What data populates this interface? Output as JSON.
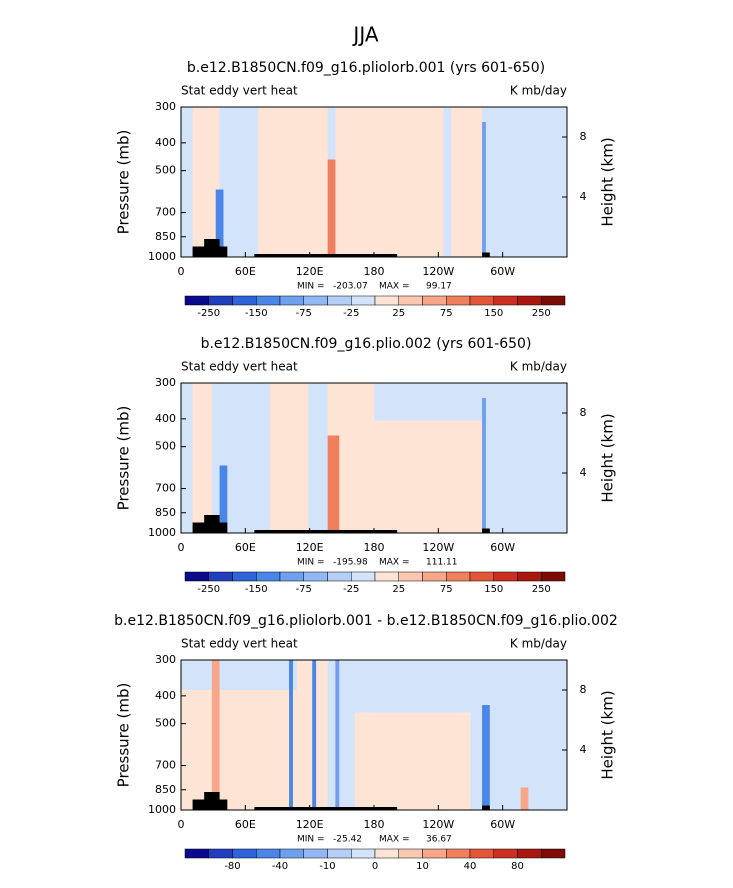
{
  "title": "JJA",
  "chart_data": [
    {
      "type": "contour",
      "title": "b.e12.B1850CN.f09_g16.pliolorb.001 (yrs 601-650)",
      "left_title": "Stat eddy vert heat",
      "right_title": "K mb/day",
      "ylabel": "Pressure (mb)",
      "y2label": "Height (km)",
      "xlim": [
        0,
        360
      ],
      "xticks": [
        0,
        {
          "value": 60,
          "label": "60E"
        },
        {
          "value": 120,
          "label": "120E"
        },
        180,
        {
          "value": 240,
          "label": "120W"
        },
        {
          "value": 300,
          "label": "60W"
        }
      ],
      "ylim": [
        1000,
        300
      ],
      "log_y": true,
      "yticks": [
        300,
        400,
        500,
        700,
        850,
        1000
      ],
      "y2lim": [
        0,
        10
      ],
      "y2ticks": [
        4,
        8
      ],
      "min_label": "MIN =",
      "min": -203.07,
      "max_label": "MAX =",
      "max": 99.17,
      "colorbar": {
        "colors": [
          "#0a0a8c",
          "#1f3fbf",
          "#2f63d9",
          "#4a86e8",
          "#6fa0ee",
          "#92b8f3",
          "#b3cff7",
          "#d3e4fa",
          "#fde4d4",
          "#fbc7b0",
          "#f7a68a",
          "#f07f5e",
          "#e4563a",
          "#cc2f1f",
          "#a8180f",
          "#7c0a05"
        ],
        "ticks": [
          -250,
          -150,
          -75,
          -25,
          25,
          75,
          150,
          250
        ]
      }
    },
    {
      "type": "contour",
      "title": "b.e12.B1850CN.f09_g16.plio.002 (yrs 601-650)",
      "left_title": "Stat eddy vert heat",
      "right_title": "K mb/day",
      "ylabel": "Pressure (mb)",
      "y2label": "Height (km)",
      "xlim": [
        0,
        360
      ],
      "xticks": [
        0,
        {
          "value": 60,
          "label": "60E"
        },
        {
          "value": 120,
          "label": "120E"
        },
        180,
        {
          "value": 240,
          "label": "120W"
        },
        {
          "value": 300,
          "label": "60W"
        }
      ],
      "ylim": [
        1000,
        300
      ],
      "log_y": true,
      "yticks": [
        300,
        400,
        500,
        700,
        850,
        1000
      ],
      "y2lim": [
        0,
        10
      ],
      "y2ticks": [
        4,
        8
      ],
      "min_label": "MIN =",
      "min": -195.98,
      "max_label": "MAX =",
      "max": 111.11,
      "colorbar": {
        "colors": [
          "#0a0a8c",
          "#1f3fbf",
          "#2f63d9",
          "#4a86e8",
          "#6fa0ee",
          "#92b8f3",
          "#b3cff7",
          "#d3e4fa",
          "#fde4d4",
          "#fbc7b0",
          "#f7a68a",
          "#f07f5e",
          "#e4563a",
          "#cc2f1f",
          "#a8180f",
          "#7c0a05"
        ],
        "ticks": [
          -250,
          -150,
          -75,
          -25,
          25,
          75,
          150,
          250
        ]
      }
    },
    {
      "type": "contour",
      "title": "b.e12.B1850CN.f09_g16.pliolorb.001 - b.e12.B1850CN.f09_g16.plio.002",
      "left_title": "Stat eddy vert heat",
      "right_title": "K mb/day",
      "ylabel": "Pressure (mb)",
      "y2label": "Height (km)",
      "xlim": [
        0,
        360
      ],
      "xticks": [
        0,
        {
          "value": 60,
          "label": "60E"
        },
        {
          "value": 120,
          "label": "120E"
        },
        180,
        {
          "value": 240,
          "label": "120W"
        },
        {
          "value": 300,
          "label": "60W"
        }
      ],
      "ylim": [
        1000,
        300
      ],
      "log_y": true,
      "yticks": [
        300,
        400,
        500,
        700,
        850,
        1000
      ],
      "y2lim": [
        0,
        10
      ],
      "y2ticks": [
        4,
        8
      ],
      "min_label": "MIN =",
      "min": -25.42,
      "max_label": "MAX =",
      "max": 36.67,
      "colorbar": {
        "colors": [
          "#0a0a8c",
          "#1f3fbf",
          "#2f63d9",
          "#4a86e8",
          "#6fa0ee",
          "#92b8f3",
          "#b3cff7",
          "#d3e4fa",
          "#fde4d4",
          "#fbc7b0",
          "#f7a68a",
          "#f07f5e",
          "#e4563a",
          "#cc2f1f",
          "#a8180f",
          "#7c0a05"
        ],
        "ticks": [
          -80,
          -40,
          -10,
          0,
          10,
          40,
          80
        ]
      }
    }
  ]
}
